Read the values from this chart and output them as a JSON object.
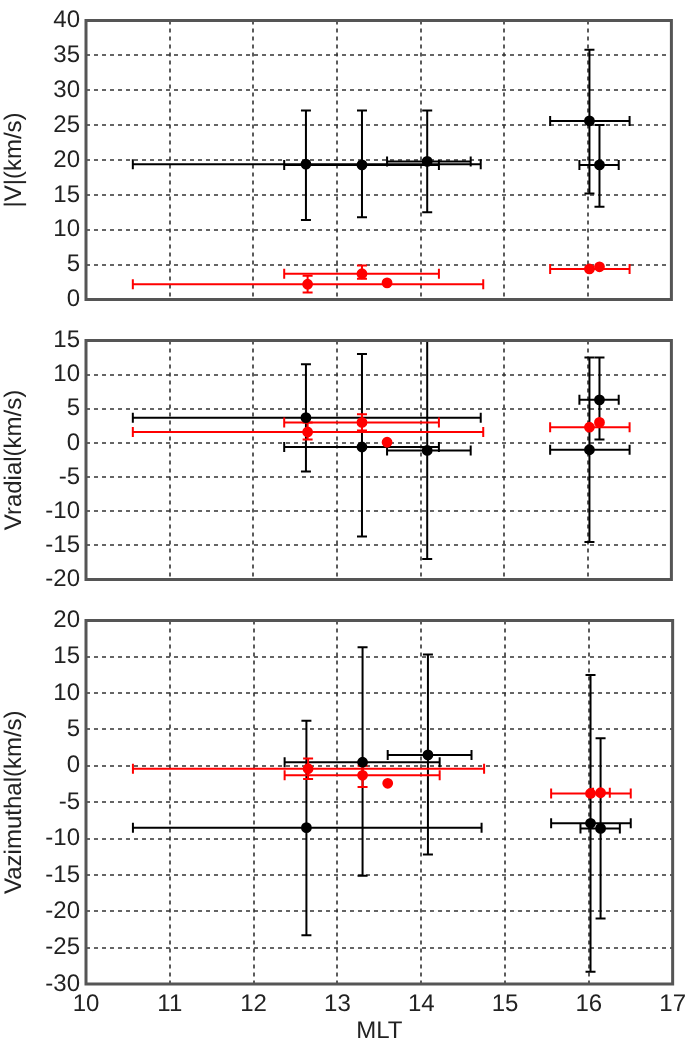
{
  "chart_data": [
    {
      "type": "scatter",
      "ylabel": "|V|(km/s)",
      "xlim": [
        10,
        17
      ],
      "xticks": [
        10,
        11,
        12,
        13,
        14,
        15,
        16,
        17
      ],
      "ylim": [
        0,
        40
      ],
      "yticks": [
        0,
        5,
        10,
        15,
        20,
        25,
        30,
        35,
        40
      ],
      "grid": true,
      "tick_labels": "y",
      "marker": "circle",
      "series": [
        {
          "color": "#000000",
          "x": [
            12.63,
            13.3,
            14.08,
            16.02,
            16.14
          ],
          "values": [
            19.4,
            19.3,
            19.8,
            25.6,
            19.3
          ],
          "errors": [
            [
              11.4,
              27.1
            ],
            [
              11.8,
              27.1
            ],
            [
              12.5,
              27.1
            ],
            [
              15.2,
              35.8
            ],
            [
              13.3,
              25
            ]
          ],
          "xerrors": [
            [
              10.56,
              14.72
            ],
            [
              12.37,
              14.22
            ],
            [
              13.6,
              14.6
            ],
            [
              15.55,
              16.5
            ],
            [
              15.9,
              16.37
            ]
          ]
        },
        {
          "color": "#ff0000",
          "x": [
            12.65,
            13.3,
            13.6,
            16.02,
            16.14
          ],
          "values": [
            2.2,
            3.7,
            2.4,
            4.4,
            4.7
          ],
          "errors": [
            [
              1,
              3.4
            ],
            [
              3,
              4.9
            ],
            null,
            null,
            null
          ],
          "xerrors": [
            [
              10.56,
              14.75
            ],
            [
              12.37,
              14.22
            ],
            null,
            [
              15.55,
              16.5
            ],
            null
          ]
        }
      ]
    },
    {
      "type": "scatter",
      "ylabel": "Vradial(km/s)",
      "xlim": [
        10,
        17
      ],
      "xticks": [
        10,
        11,
        12,
        13,
        14,
        15,
        16,
        17
      ],
      "ylim": [
        -20,
        15
      ],
      "yticks": [
        -20,
        -15,
        -10,
        -5,
        0,
        5,
        10,
        15
      ],
      "grid": true,
      "tick_labels": "y",
      "marker": "circle",
      "series": [
        {
          "color": "#000000",
          "x": [
            12.63,
            13.3,
            14.08,
            16.02,
            16.14
          ],
          "values": [
            3.7,
            -0.6,
            -1.1,
            -1,
            6.3
          ],
          "errors": [
            [
              -4.2,
              11.5
            ],
            [
              -13.7,
              13
            ],
            [
              -17,
              15
            ],
            [
              -14.5,
              12.5
            ],
            [
              0.5,
              12.5
            ]
          ],
          "xerrors": [
            [
              10.56,
              14.72
            ],
            [
              12.37,
              14.22
            ],
            [
              13.6,
              14.6
            ],
            [
              15.55,
              16.5
            ],
            [
              15.9,
              16.37
            ]
          ]
        },
        {
          "color": "#ff0000",
          "x": [
            12.65,
            13.3,
            13.6,
            16.02,
            16.14
          ],
          "values": [
            1.6,
            3,
            0.1,
            2.3,
            3
          ],
          "errors": [
            [
              0.5,
              3
            ],
            [
              1.8,
              4.2
            ],
            null,
            null,
            null
          ],
          "xerrors": [
            [
              10.56,
              14.75
            ],
            [
              12.37,
              14.22
            ],
            null,
            [
              15.55,
              16.5
            ],
            null
          ]
        }
      ]
    },
    {
      "type": "scatter",
      "xlabel": "MLT",
      "ylabel": "Vazimuthal(km/s)",
      "xlim": [
        10,
        17
      ],
      "xticks": [
        10,
        11,
        12,
        13,
        14,
        15,
        16,
        17
      ],
      "ylim": [
        -30,
        20
      ],
      "yticks": [
        -30,
        -25,
        -20,
        -15,
        -10,
        -5,
        0,
        5,
        10,
        15,
        20
      ],
      "grid": true,
      "marker": "circle",
      "series": [
        {
          "color": "#000000",
          "x": [
            12.63,
            13.3,
            14.08,
            16.02,
            16.14
          ],
          "values": [
            -8.5,
            0.5,
            1.5,
            -7.9,
            -8.6
          ],
          "errors": [
            [
              -23.3,
              6.2
            ],
            [
              -15.1,
              16.3
            ],
            [
              -12.2,
              15.3
            ],
            [
              -28.3,
              12.5
            ],
            [
              -21,
              3.8
            ]
          ],
          "xerrors": [
            [
              10.56,
              14.72
            ],
            [
              12.37,
              14.22
            ],
            [
              13.6,
              14.6
            ],
            [
              15.55,
              16.5
            ],
            [
              15.9,
              16.37
            ]
          ]
        },
        {
          "color": "#ff0000",
          "x": [
            12.65,
            13.3,
            13.6,
            16.02,
            16.14
          ],
          "values": [
            -0.4,
            -1.3,
            -2.4,
            -3.8,
            -3.7
          ],
          "errors": [
            [
              -1.8,
              1
            ],
            [
              -2.9,
              0
            ],
            null,
            null,
            null
          ],
          "xerrors": [
            [
              10.56,
              14.75
            ],
            [
              12.37,
              14.22
            ],
            null,
            [
              15.55,
              16.5
            ],
            [
              16.05,
              16.25
            ]
          ]
        }
      ]
    }
  ]
}
